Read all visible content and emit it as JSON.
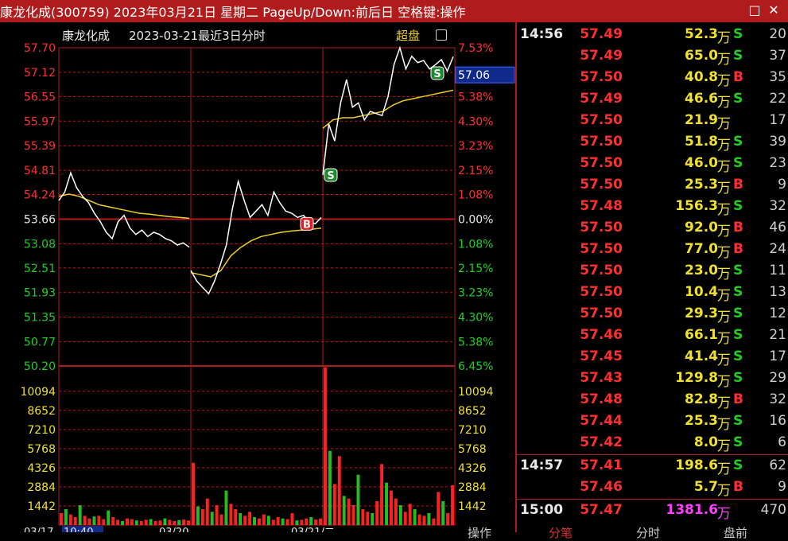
{
  "window": {
    "title": "康龙化成(300759) 2023年03月21日 星期二 PageUp/Down:前后日 空格键:操作",
    "restore_glyph": "□",
    "close_glyph": "✕"
  },
  "chart_header": {
    "name": "康龙化成",
    "subtitle": "2023-03-21最近3日分时",
    "mode_label": "超盘",
    "mode_icon": "square-icon"
  },
  "chart_data": {
    "type": "line",
    "title": "康龙化成 2023-03-21最近3日分时",
    "price_ticks": [
      "57.70",
      "57.12",
      "56.55",
      "55.97",
      "55.39",
      "54.81",
      "54.24",
      "53.66",
      "53.08",
      "52.51",
      "51.93",
      "51.35",
      "50.77",
      "50.20"
    ],
    "pct_ticks": [
      "7.53%",
      "6.45%",
      "5.38%",
      "4.30%",
      "3.23%",
      "2.15%",
      "1.08%",
      "0.00%",
      "1.08%",
      "2.15%",
      "3.23%",
      "4.30%",
      "5.38%",
      "6.45%"
    ],
    "volume_ticks": [
      "10094",
      "8652",
      "7210",
      "5768",
      "4326",
      "2884",
      "1442"
    ],
    "reference_price": 53.66,
    "ylim": [
      50.2,
      57.7
    ],
    "current_price_label": "57.06",
    "days": [
      "2023-03-17",
      "2023-03-20",
      "2023-03-21"
    ],
    "x_labels": [
      "03/17",
      "10:40",
      "03/20",
      "03/21/二"
    ],
    "price_series": [
      {
        "day": 0,
        "values": [
          54.1,
          54.3,
          54.75,
          54.4,
          54.2,
          54.05,
          53.8,
          53.6,
          53.35,
          53.2,
          53.6,
          53.75,
          53.45,
          53.3,
          53.4,
          53.25,
          53.35,
          53.3,
          53.2,
          53.15,
          53.05,
          53.1,
          53.0
        ]
      },
      {
        "day": 1,
        "values": [
          52.45,
          52.2,
          52.05,
          51.9,
          52.2,
          52.6,
          53.05,
          53.9,
          54.55,
          54.1,
          53.7,
          53.85,
          54.0,
          53.75,
          54.3,
          54.05,
          53.85,
          53.8,
          53.7,
          53.75,
          53.6,
          53.55,
          53.7
        ]
      },
      {
        "day": 2,
        "values": [
          54.7,
          55.9,
          55.5,
          56.4,
          56.95,
          56.3,
          56.4,
          56.0,
          56.2,
          56.15,
          56.1,
          56.55,
          57.3,
          57.7,
          57.2,
          57.5,
          57.35,
          57.4,
          57.2,
          57.3,
          57.42,
          57.15,
          57.49
        ]
      }
    ],
    "avg_series": [
      {
        "day": 0,
        "values": [
          54.2,
          54.25,
          54.2,
          54.1,
          54.0,
          53.95,
          53.9,
          53.85,
          53.8,
          53.78,
          53.75,
          53.72,
          53.7,
          53.68
        ]
      },
      {
        "day": 1,
        "values": [
          52.4,
          52.35,
          52.3,
          52.45,
          52.8,
          53.0,
          53.15,
          53.25,
          53.3,
          53.35,
          53.38,
          53.4,
          53.42,
          53.45
        ]
      },
      {
        "day": 2,
        "values": [
          55.8,
          56.0,
          56.05,
          56.05,
          56.1,
          56.15,
          56.2,
          56.35,
          56.45,
          56.5,
          56.55,
          56.6,
          56.65,
          56.7
        ]
      }
    ],
    "volume_series": [
      {
        "day": 0,
        "values": [
          900,
          1200,
          800,
          600,
          1500,
          700,
          500,
          650,
          700,
          450,
          1100,
          600,
          400,
          300,
          500,
          450,
          350,
          300,
          400,
          450,
          300,
          350,
          500,
          400,
          300,
          380,
          420,
          350
        ]
      },
      {
        "day": 1,
        "values": [
          4700,
          1400,
          1200,
          2000,
          1000,
          1500,
          800,
          2600,
          1600,
          1200,
          900,
          700,
          1000,
          600,
          500,
          800,
          700,
          400,
          600,
          500,
          450,
          900,
          350,
          400,
          500,
          600,
          420,
          500
        ]
      },
      {
        "day": 2,
        "values": [
          11900,
          5600,
          3100,
          5200,
          2200,
          2000,
          1500,
          3800,
          1200,
          1000,
          900,
          1800,
          4600,
          3200,
          2600,
          2000,
          1500,
          1000,
          1600,
          1200,
          800,
          700,
          900,
          500,
          2500,
          1800,
          900,
          3000
        ]
      }
    ],
    "markers": [
      {
        "label": "B",
        "day": 1,
        "price": 53.55,
        "color": "#e02020"
      },
      {
        "label": "S",
        "day": 2,
        "price": 54.7,
        "color": "#1a8a2a"
      },
      {
        "label": "S",
        "day": 2,
        "price": 57.1,
        "color": "#1a8a2a"
      }
    ]
  },
  "trades": [
    {
      "time": "14:56",
      "price": "57.49",
      "vol": "52.3",
      "unit": "万",
      "side": "S",
      "count": "20"
    },
    {
      "time": "",
      "price": "57.49",
      "vol": "65.0",
      "unit": "万",
      "side": "S",
      "count": "37"
    },
    {
      "time": "",
      "price": "57.50",
      "vol": "40.8",
      "unit": "万",
      "side": "B",
      "count": "35"
    },
    {
      "time": "",
      "price": "57.49",
      "vol": "46.6",
      "unit": "万",
      "side": "S",
      "count": "22"
    },
    {
      "time": "",
      "price": "57.50",
      "vol": "21.9",
      "unit": "万",
      "side": "",
      "count": "17"
    },
    {
      "time": "",
      "price": "57.50",
      "vol": "51.8",
      "unit": "万",
      "side": "S",
      "count": "39"
    },
    {
      "time": "",
      "price": "57.50",
      "vol": "46.0",
      "unit": "万",
      "side": "S",
      "count": "23"
    },
    {
      "time": "",
      "price": "57.50",
      "vol": "25.3",
      "unit": "万",
      "side": "B",
      "count": "9"
    },
    {
      "time": "",
      "price": "57.48",
      "vol": "156.3",
      "unit": "万",
      "side": "S",
      "count": "32"
    },
    {
      "time": "",
      "price": "57.50",
      "vol": "92.0",
      "unit": "万",
      "side": "B",
      "count": "46"
    },
    {
      "time": "",
      "price": "57.50",
      "vol": "77.0",
      "unit": "万",
      "side": "B",
      "count": "24"
    },
    {
      "time": "",
      "price": "57.50",
      "vol": "23.0",
      "unit": "万",
      "side": "S",
      "count": "11"
    },
    {
      "time": "",
      "price": "57.50",
      "vol": "10.4",
      "unit": "万",
      "side": "S",
      "count": "13"
    },
    {
      "time": "",
      "price": "57.50",
      "vol": "29.3",
      "unit": "万",
      "side": "S",
      "count": "12"
    },
    {
      "time": "",
      "price": "57.46",
      "vol": "66.1",
      "unit": "万",
      "side": "S",
      "count": "21"
    },
    {
      "time": "",
      "price": "57.45",
      "vol": "41.4",
      "unit": "万",
      "side": "S",
      "count": "17"
    },
    {
      "time": "",
      "price": "57.43",
      "vol": "129.8",
      "unit": "万",
      "side": "S",
      "count": "29"
    },
    {
      "time": "",
      "price": "57.48",
      "vol": "82.8",
      "unit": "万",
      "side": "B",
      "count": "32"
    },
    {
      "time": "",
      "price": "57.44",
      "vol": "25.3",
      "unit": "万",
      "side": "S",
      "count": "16"
    },
    {
      "time": "",
      "price": "57.42",
      "vol": "8.0",
      "unit": "万",
      "side": "S",
      "count": "6"
    },
    {
      "time": "14:57",
      "price": "57.41",
      "vol": "198.6",
      "unit": "万",
      "side": "S",
      "count": "62"
    },
    {
      "time": "",
      "price": "57.46",
      "vol": "5.7",
      "unit": "万",
      "side": "B",
      "count": "9"
    },
    {
      "time": "15:00",
      "price": "57.47",
      "vol": "1381.6",
      "unit": "万",
      "side": "",
      "count": "470"
    }
  ],
  "bottom_tabs": {
    "left": "操作",
    "tab1": "分笔",
    "tab2": "分时",
    "tab3": "盘前"
  },
  "colors": {
    "up": "#ff3030",
    "down": "#20d020",
    "grid": "#b01c1c",
    "price_line": "#ffffff",
    "avg_line": "#f0d020",
    "vol_up": "#ff2020",
    "vol_down": "#20c020",
    "buy": "#e02020",
    "sell": "#1a8a2a"
  }
}
